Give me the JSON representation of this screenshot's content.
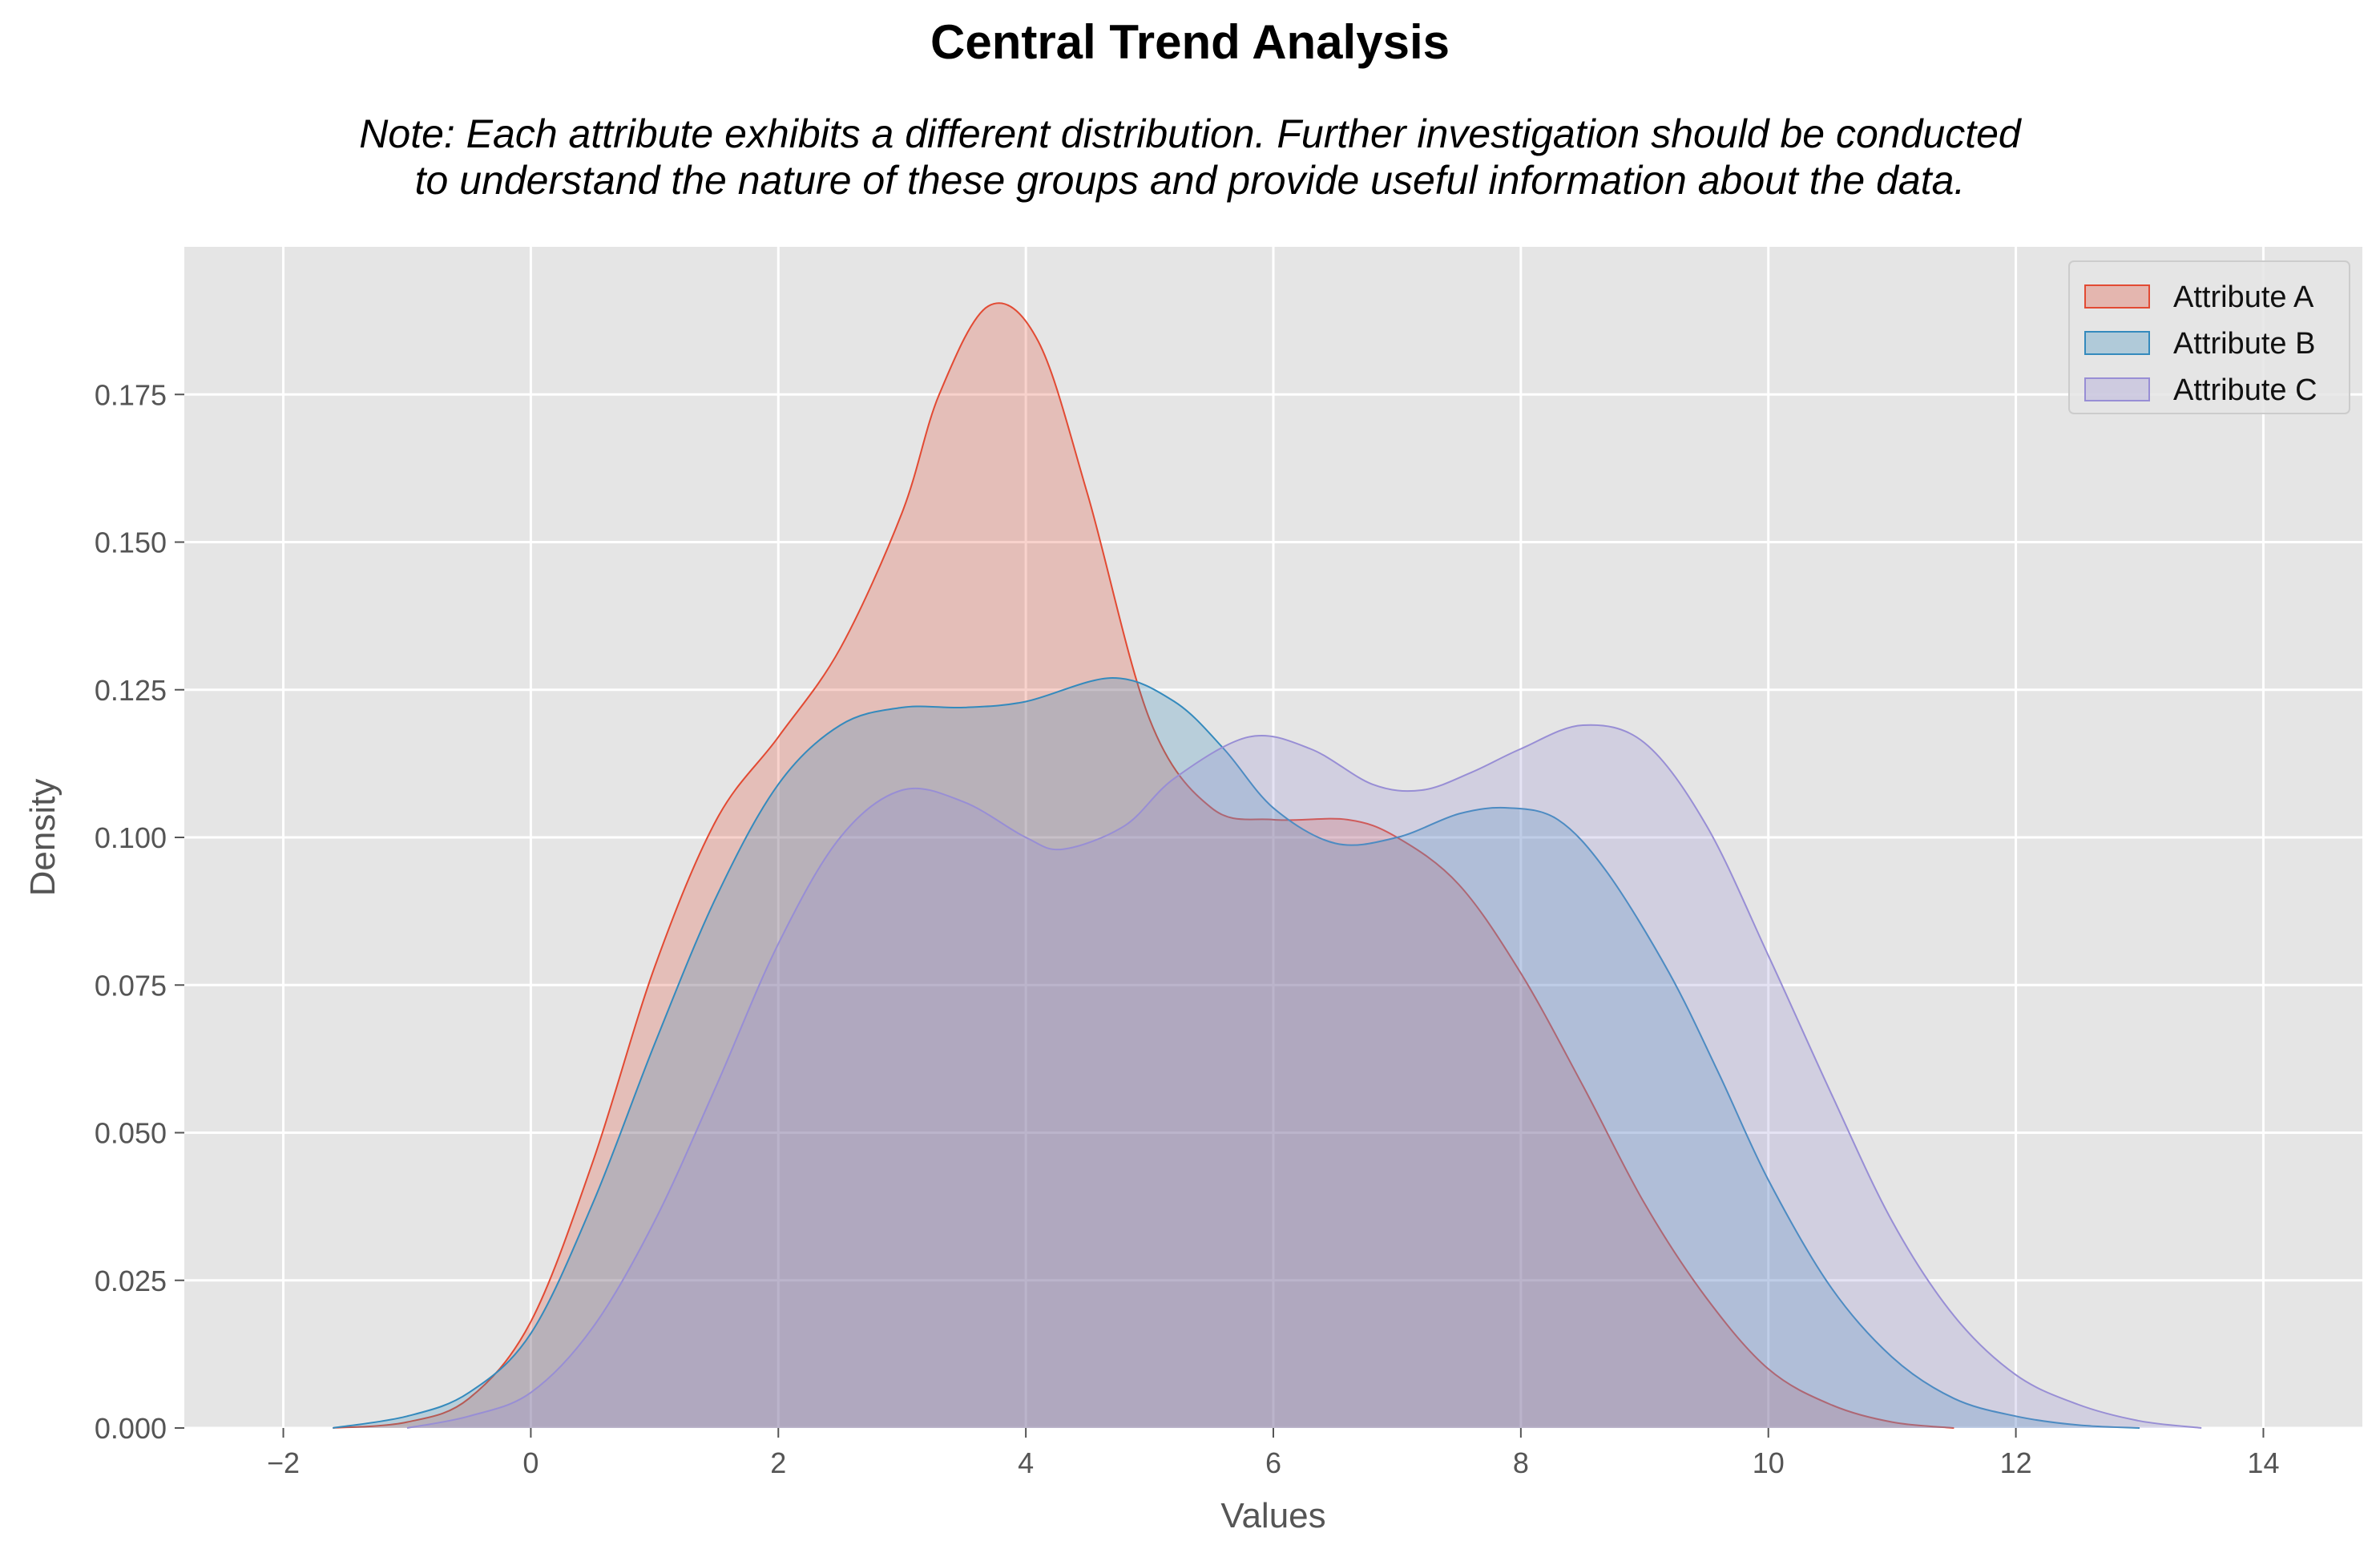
{
  "title": "Central Trend Analysis",
  "note_lines": [
    "Note: Each attribute exhibits a different distribution. Further investigation should be conducted",
    "to understand the nature of these groups and provide useful information about the data."
  ],
  "chart_data": {
    "type": "area",
    "subtype": "kde",
    "title": "Central Trend Analysis",
    "xlabel": "Values",
    "ylabel": "Density",
    "xlim": [
      -2.8,
      14.8
    ],
    "ylim": [
      0,
      0.2
    ],
    "xticks": [
      -2,
      0,
      2,
      4,
      6,
      8,
      10,
      12,
      14
    ],
    "xtick_labels": [
      "−2",
      "0",
      "2",
      "4",
      "6",
      "8",
      "10",
      "12",
      "14"
    ],
    "yticks": [
      0.0,
      0.025,
      0.05,
      0.075,
      0.1,
      0.125,
      0.15,
      0.175
    ],
    "ytick_labels": [
      "0.000",
      "0.025",
      "0.050",
      "0.075",
      "0.100",
      "0.125",
      "0.150",
      "0.175"
    ],
    "grid": true,
    "legend_position": "top-right",
    "series": [
      {
        "name": "Attribute A",
        "color": "#E24A33",
        "points": [
          [
            -1.6,
            0
          ],
          [
            -1,
            0.001
          ],
          [
            -0.5,
            0.005
          ],
          [
            0,
            0.018
          ],
          [
            0.5,
            0.045
          ],
          [
            1,
            0.078
          ],
          [
            1.5,
            0.103
          ],
          [
            2,
            0.117
          ],
          [
            2.5,
            0.132
          ],
          [
            3,
            0.155
          ],
          [
            3.3,
            0.175
          ],
          [
            3.7,
            0.19
          ],
          [
            4.1,
            0.184
          ],
          [
            4.5,
            0.158
          ],
          [
            5,
            0.12
          ],
          [
            5.5,
            0.105
          ],
          [
            6,
            0.103
          ],
          [
            6.6,
            0.103
          ],
          [
            7,
            0.1
          ],
          [
            7.5,
            0.092
          ],
          [
            8,
            0.077
          ],
          [
            8.5,
            0.058
          ],
          [
            9,
            0.038
          ],
          [
            9.5,
            0.022
          ],
          [
            10,
            0.01
          ],
          [
            10.5,
            0.004
          ],
          [
            11,
            0.001
          ],
          [
            11.5,
            0
          ]
        ]
      },
      {
        "name": "Attribute B",
        "color": "#348ABD",
        "points": [
          [
            -1.6,
            0
          ],
          [
            -1,
            0.002
          ],
          [
            -0.5,
            0.006
          ],
          [
            0,
            0.016
          ],
          [
            0.5,
            0.038
          ],
          [
            1,
            0.065
          ],
          [
            1.5,
            0.09
          ],
          [
            2,
            0.109
          ],
          [
            2.5,
            0.119
          ],
          [
            3,
            0.122
          ],
          [
            3.5,
            0.122
          ],
          [
            4,
            0.123
          ],
          [
            4.7,
            0.127
          ],
          [
            5.2,
            0.123
          ],
          [
            5.6,
            0.115
          ],
          [
            6,
            0.105
          ],
          [
            6.5,
            0.099
          ],
          [
            7,
            0.1
          ],
          [
            7.5,
            0.104
          ],
          [
            7.9,
            0.105
          ],
          [
            8.3,
            0.103
          ],
          [
            8.7,
            0.094
          ],
          [
            9.2,
            0.077
          ],
          [
            9.6,
            0.06
          ],
          [
            10,
            0.042
          ],
          [
            10.5,
            0.024
          ],
          [
            11,
            0.012
          ],
          [
            11.5,
            0.005
          ],
          [
            12,
            0.002
          ],
          [
            12.5,
            0.0005
          ],
          [
            13,
            0
          ]
        ]
      },
      {
        "name": "Attribute C",
        "color": "#988ED5",
        "points": [
          [
            -1,
            0
          ],
          [
            -0.5,
            0.002
          ],
          [
            0,
            0.006
          ],
          [
            0.5,
            0.017
          ],
          [
            1,
            0.035
          ],
          [
            1.5,
            0.058
          ],
          [
            2,
            0.082
          ],
          [
            2.5,
            0.1
          ],
          [
            3,
            0.108
          ],
          [
            3.5,
            0.106
          ],
          [
            4,
            0.1
          ],
          [
            4.3,
            0.098
          ],
          [
            4.8,
            0.102
          ],
          [
            5.2,
            0.11
          ],
          [
            5.8,
            0.117
          ],
          [
            6.3,
            0.115
          ],
          [
            6.8,
            0.109
          ],
          [
            7.2,
            0.108
          ],
          [
            7.6,
            0.111
          ],
          [
            8,
            0.115
          ],
          [
            8.5,
            0.119
          ],
          [
            9,
            0.116
          ],
          [
            9.5,
            0.102
          ],
          [
            10,
            0.08
          ],
          [
            10.5,
            0.057
          ],
          [
            11,
            0.035
          ],
          [
            11.5,
            0.019
          ],
          [
            12,
            0.009
          ],
          [
            12.5,
            0.004
          ],
          [
            13,
            0.0012
          ],
          [
            13.5,
            0
          ]
        ]
      }
    ]
  }
}
